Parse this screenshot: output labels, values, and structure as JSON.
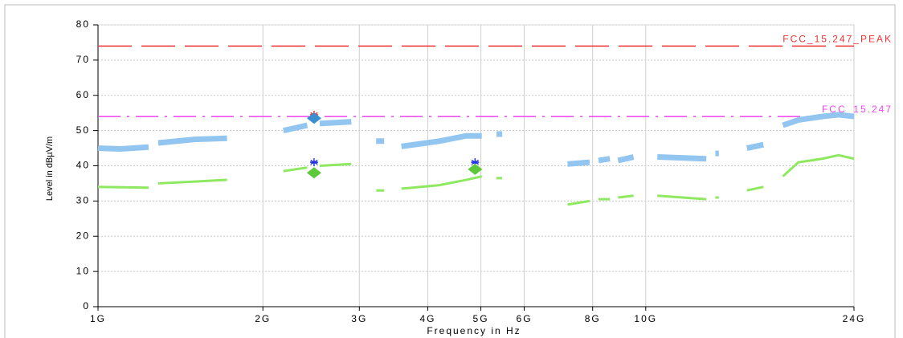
{
  "chart_data": {
    "type": "line",
    "xlabel": "Frequency in Hz",
    "ylabel": "Level in dBµV/m",
    "log_x": true,
    "grid": true,
    "xlim": [
      1000000000.0,
      24000000000.0
    ],
    "ylim": [
      0,
      80
    ],
    "xticks": [
      {
        "value": 1000000000.0,
        "label": "1G"
      },
      {
        "value": 2000000000.0,
        "label": "2G"
      },
      {
        "value": 3000000000.0,
        "label": "3G"
      },
      {
        "value": 4000000000.0,
        "label": "4G"
      },
      {
        "value": 5000000000.0,
        "label": "5G"
      },
      {
        "value": 6000000000.0,
        "label": "6G"
      },
      {
        "value": 8000000000.0,
        "label": "8G"
      },
      {
        "value": 10000000000.0,
        "label": "10G"
      },
      {
        "value": 24000000000.0,
        "label": "24G"
      }
    ],
    "yticks": [
      0,
      10,
      20,
      30,
      40,
      50,
      60,
      70,
      80
    ],
    "series": [
      {
        "name": "FCC_15.247_PEAK",
        "color": "#ee3333",
        "dash": "42 12",
        "x": [
          1000000000.0,
          24000000000.0
        ],
        "values": [
          74,
          74
        ]
      },
      {
        "name": "FCC_15.247",
        "color": "#ee44ee",
        "dash": "28 8 3 8",
        "x": [
          1000000000.0,
          24000000000.0
        ],
        "values": [
          54,
          54
        ]
      },
      {
        "color": "#92c5f0",
        "width": 7,
        "x": [
          1000000000.0,
          1100000000.0,
          1237000000.0,
          1260000000.0,
          1288000000.0,
          1500000000.0,
          1720000000.0,
          1900000000.0,
          2180000000.0,
          2410000000.0,
          2470000000.0,
          2540000000.0,
          2900000000.0,
          3000000000.0,
          3220000000.0,
          3330000000.0,
          3450000000.0,
          3580000000.0,
          4200000000.0,
          4700000000.0,
          5020000000.0,
          5200000000.0,
          5340000000.0,
          5470000000.0,
          6500000000.0,
          7200000000.0,
          7900000000.0,
          8050000000.0,
          8200000000.0,
          8600000000.0,
          8750000000.0,
          8900000000.0,
          9500000000.0,
          10000000000.0,
          10500000000.0,
          12900000000.0,
          13200000000.0,
          13400000000.0,
          13600000000.0,
          14500000000.0,
          15300000000.0,
          16400000000.0,
          17000000000.0,
          17800000000.0,
          19000000000.0,
          21000000000.0,
          22500000000.0,
          24000000000.0
        ],
        "values": [
          45,
          44.8,
          45.3,
          null,
          46.5,
          47.5,
          47.8,
          null,
          50,
          51.5,
          null,
          52,
          52.5,
          null,
          47,
          47,
          null,
          45.5,
          47,
          48.5,
          48.5,
          null,
          49,
          49,
          null,
          40.5,
          41,
          null,
          41.5,
          42,
          null,
          41.5,
          42.5,
          null,
          42.5,
          42,
          null,
          43.5,
          43.5,
          null,
          45,
          46,
          null,
          51.5,
          53,
          54,
          54.5,
          54
        ]
      },
      {
        "color": "#8ee860",
        "width": 3,
        "x": [
          1000000000.0,
          1237000000.0,
          1260000000.0,
          1288000000.0,
          1720000000.0,
          1900000000.0,
          2180000000.0,
          2410000000.0,
          2470000000.0,
          2540000000.0,
          2900000000.0,
          3000000000.0,
          3220000000.0,
          3330000000.0,
          3450000000.0,
          3580000000.0,
          4200000000.0,
          4700000000.0,
          5020000000.0,
          5200000000.0,
          5340000000.0,
          5470000000.0,
          6500000000.0,
          7200000000.0,
          7900000000.0,
          8050000000.0,
          8200000000.0,
          8600000000.0,
          8750000000.0,
          8900000000.0,
          9500000000.0,
          10000000000.0,
          10500000000.0,
          12900000000.0,
          13200000000.0,
          13400000000.0,
          13600000000.0,
          14500000000.0,
          15300000000.0,
          16400000000.0,
          17000000000.0,
          17800000000.0,
          19000000000.0,
          21000000000.0,
          22500000000.0,
          24000000000.0
        ],
        "values": [
          34,
          33.8,
          null,
          35,
          36,
          null,
          38.5,
          39.5,
          null,
          40,
          40.5,
          null,
          33,
          33,
          null,
          33.5,
          34.5,
          36,
          37,
          null,
          36.5,
          36.5,
          null,
          29,
          30,
          null,
          30.5,
          30.5,
          null,
          31,
          31.5,
          null,
          31.5,
          30.5,
          null,
          31,
          31,
          null,
          33,
          34,
          null,
          37,
          41,
          42,
          43,
          42
        ]
      },
      {
        "color": "#ee3333",
        "marker": "star",
        "x": [
          2480000000.0
        ],
        "values": [
          54.5
        ]
      },
      {
        "color": "#3a8fd0",
        "marker": "diamond",
        "x": [
          2480000000.0
        ],
        "values": [
          53.5
        ]
      },
      {
        "color": "#2233dd",
        "marker": "star",
        "x": [
          2480000000.0,
          4880000000.0
        ],
        "values": [
          41,
          41
        ]
      },
      {
        "color": "#5cc83a",
        "marker": "diamond",
        "x": [
          2480000000.0,
          4880000000.0
        ],
        "values": [
          38,
          39
        ]
      }
    ]
  }
}
